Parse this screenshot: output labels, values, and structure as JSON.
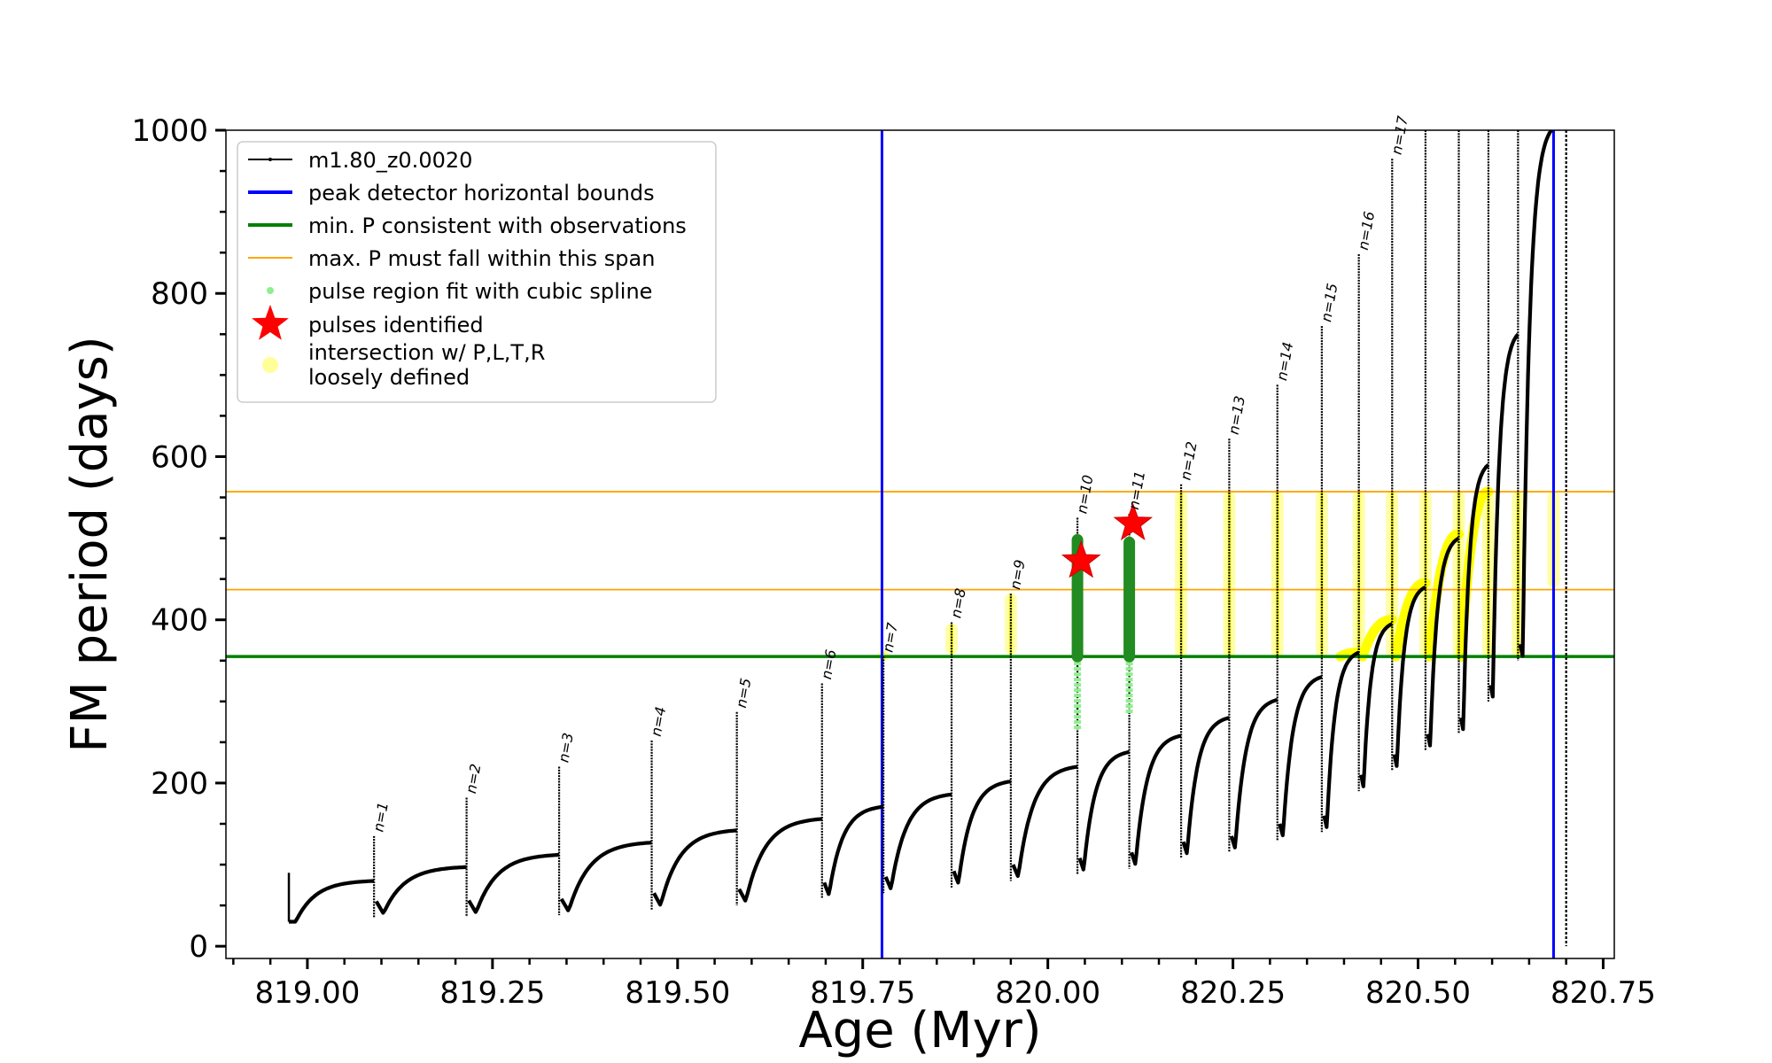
{
  "chart_data": {
    "type": "line",
    "title": "",
    "xlabel": "Age (Myr)",
    "ylabel": "FM period (days)",
    "xlim": [
      818.89,
      820.765
    ],
    "ylim": [
      -15,
      1000
    ],
    "xticks": [
      "819.00",
      "819.25",
      "819.50",
      "819.75",
      "820.00",
      "820.25",
      "820.50",
      "820.75"
    ],
    "yticks": [
      "0",
      "200",
      "400",
      "600",
      "800",
      "1000"
    ],
    "grid": false,
    "legend_placement": "top-left",
    "legend": [
      {
        "label": "m1.80_z0.0020",
        "kind": "line-dots",
        "color": "#000000"
      },
      {
        "label": "peak detector horizontal bounds",
        "kind": "line",
        "color": "#0000ff"
      },
      {
        "label": "min. P consistent with observations",
        "kind": "line",
        "color": "#008000"
      },
      {
        "label": "max. P must fall within this span",
        "kind": "line",
        "color": "#ffa500"
      },
      {
        "label": "pulse region fit with cubic spline",
        "kind": "dot",
        "color": "#90ee90"
      },
      {
        "label": "pulses identified",
        "kind": "star",
        "color": "#ff0000"
      },
      {
        "label": "intersection w/ P,L,T,R\nloosely defined",
        "kind": "circle",
        "color": "#ffff99"
      }
    ],
    "vlines": [
      {
        "x": 819.776,
        "color": "#0000ff",
        "name": "peak detector horizontal bounds"
      },
      {
        "x": 820.683,
        "color": "#0000ff",
        "name": "peak detector horizontal bounds"
      }
    ],
    "hlines": [
      {
        "y": 355,
        "color": "#008000",
        "name": "min. P consistent with observations"
      },
      {
        "y": 437,
        "color": "#ffa500",
        "name": "max. P must fall within this span"
      },
      {
        "y": 557,
        "color": "#ffa500",
        "name": "max. P must fall within this span"
      }
    ],
    "pulses": [
      {
        "label": "n=1",
        "x": 819.09,
        "peak": 135,
        "baseline": 80,
        "min": 35
      },
      {
        "label": "n=2",
        "x": 819.215,
        "peak": 182,
        "baseline": 97,
        "min": 36
      },
      {
        "label": "n=3",
        "x": 819.34,
        "peak": 220,
        "baseline": 112,
        "min": 38
      },
      {
        "label": "n=4",
        "x": 819.465,
        "peak": 252,
        "baseline": 127,
        "min": 45
      },
      {
        "label": "n=5",
        "x": 819.58,
        "peak": 287,
        "baseline": 142,
        "min": 50
      },
      {
        "label": "n=6",
        "x": 819.695,
        "peak": 322,
        "baseline": 156,
        "min": 58
      },
      {
        "label": "n=7",
        "x": 819.778,
        "peak": 355,
        "baseline": 171,
        "min": 65
      },
      {
        "label": "n=8",
        "x": 819.87,
        "peak": 397,
        "baseline": 186,
        "min": 72
      },
      {
        "label": "n=9",
        "x": 819.95,
        "peak": 432,
        "baseline": 202,
        "min": 80
      },
      {
        "label": "n=10",
        "x": 820.04,
        "peak": 525,
        "baseline": 220,
        "min": 88
      },
      {
        "label": "n=11",
        "x": 820.11,
        "peak": 530,
        "baseline": 238,
        "min": 95
      },
      {
        "label": "n=12",
        "x": 820.18,
        "peak": 566,
        "baseline": 258,
        "min": 108
      },
      {
        "label": "n=13",
        "x": 820.245,
        "peak": 622,
        "baseline": 280,
        "min": 115
      },
      {
        "label": "n=14",
        "x": 820.31,
        "peak": 688,
        "baseline": 302,
        "min": 130
      },
      {
        "label": "n=15",
        "x": 820.37,
        "peak": 760,
        "baseline": 330,
        "min": 140
      },
      {
        "label": "n=16",
        "x": 820.42,
        "peak": 848,
        "baseline": 360,
        "min": 190
      },
      {
        "label": "n=17",
        "x": 820.465,
        "peak": 965,
        "baseline": 395,
        "min": 215
      },
      {
        "label": "",
        "x": 820.51,
        "peak": 1000,
        "baseline": 440,
        "min": 240
      },
      {
        "label": "",
        "x": 820.555,
        "peak": 1000,
        "baseline": 500,
        "min": 260
      },
      {
        "label": "",
        "x": 820.595,
        "peak": 1000,
        "baseline": 590,
        "min": 300
      },
      {
        "label": "",
        "x": 820.635,
        "peak": 1000,
        "baseline": 750,
        "min": 350
      }
    ],
    "first_point": {
      "x": 818.975,
      "y": 90
    },
    "terminal_column": {
      "x": 820.7,
      "top": 1000,
      "bottom": 0
    },
    "green_pulses": [
      {
        "x": 820.04,
        "fit_top": 498,
        "fit_bottom": 355,
        "spline_bottom": 265
      },
      {
        "x": 820.11,
        "fit_top": 495,
        "fit_bottom": 355,
        "spline_bottom": 285
      }
    ],
    "stars": [
      {
        "x": 820.045,
        "y": 472
      },
      {
        "x": 820.115,
        "y": 518
      }
    ],
    "yellow_regions": [
      {
        "x": 819.778,
        "ymin": 350,
        "ymax": 362
      },
      {
        "x": 819.87,
        "ymin": 358,
        "ymax": 395
      },
      {
        "x": 819.95,
        "ymin": 358,
        "ymax": 432
      },
      {
        "x": 820.18,
        "ymin": 355,
        "ymax": 557
      },
      {
        "x": 820.245,
        "ymin": 355,
        "ymax": 557
      },
      {
        "x": 820.31,
        "ymin": 355,
        "ymax": 557
      },
      {
        "x": 820.37,
        "ymin": 355,
        "ymax": 557
      },
      {
        "x": 820.42,
        "ymin": 355,
        "ymax": 557
      },
      {
        "x": 820.465,
        "ymin": 355,
        "ymax": 557
      },
      {
        "x": 820.51,
        "ymin": 355,
        "ymax": 557
      },
      {
        "x": 820.555,
        "ymin": 355,
        "ymax": 557
      },
      {
        "x": 820.595,
        "ymin": 355,
        "ymax": 557
      },
      {
        "x": 820.635,
        "ymin": 355,
        "ymax": 557
      },
      {
        "x": 820.683,
        "ymin": 440,
        "ymax": 557
      }
    ],
    "yellow_arcs": [
      {
        "x0": 820.395,
        "x1": 820.42,
        "peak": 360
      },
      {
        "x0": 820.425,
        "x1": 820.465,
        "peak": 400
      },
      {
        "x0": 820.47,
        "x1": 820.51,
        "peak": 445
      },
      {
        "x0": 820.515,
        "x1": 820.555,
        "peak": 505
      },
      {
        "x0": 820.558,
        "x1": 820.595,
        "peak": 557
      }
    ],
    "colors": {
      "track": "#000000",
      "bounds": "#0000ff",
      "min_p": "#008000",
      "max_p": "#ffa500",
      "spline": "#90ee90",
      "fit": "#228b22",
      "star": "#ff0000",
      "yellow": "#ffff00",
      "yellow_soft": "#ffff99"
    }
  }
}
